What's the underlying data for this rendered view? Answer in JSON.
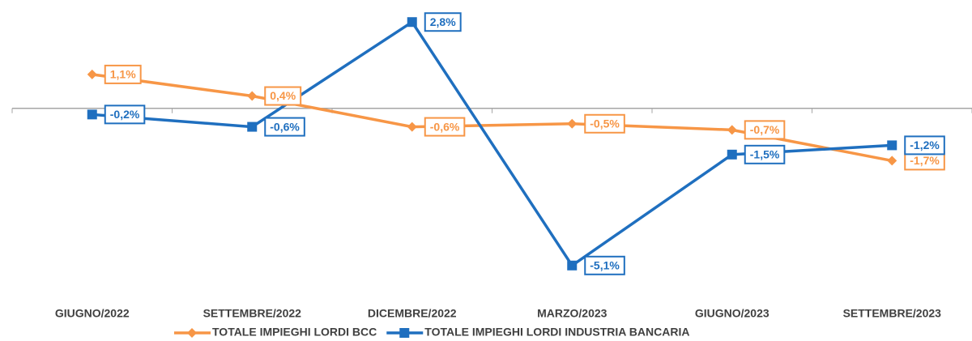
{
  "chart_data": {
    "type": "line",
    "categories": [
      "GIUGNO/2022",
      "SETTEMBRE/2022",
      "DICEMBRE/2022",
      "MARZO/2023",
      "GIUGNO/2023",
      "SETTEMBRE/2023"
    ],
    "series": [
      {
        "name": "TOTALE IMPIEGHI LORDI BCC",
        "color": "#f79646",
        "marker": "diamond",
        "values": [
          1.1,
          0.4,
          -0.6,
          -0.5,
          -0.7,
          -1.7
        ],
        "value_labels": [
          "1,1%",
          "0,4%",
          "-0,6%",
          "-0,5%",
          "-0,7%",
          "-1,7%"
        ]
      },
      {
        "name": "TOTALE IMPIEGHI LORDI INDUSTRIA BANCARIA",
        "color": "#1f6fbf",
        "marker": "square",
        "values": [
          -0.2,
          -0.6,
          2.8,
          -5.1,
          -1.5,
          -1.2
        ],
        "value_labels": [
          "-0,2%",
          "-0,6%",
          "2,8%",
          "-5,1%",
          "-1,5%",
          "-1,2%"
        ]
      }
    ],
    "ylim": [
      -5.5,
      3.2
    ],
    "legend": "bottom"
  }
}
